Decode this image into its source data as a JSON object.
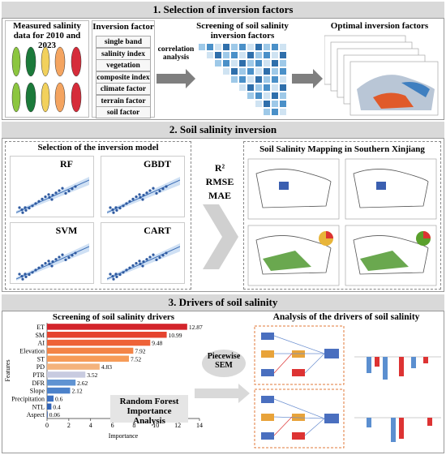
{
  "section1": {
    "title": "1. Selection of inversion factors",
    "measured_data": "Measured salinity data for 2010 and 2023",
    "inversion_factor": {
      "title": "Inversion factor",
      "items": [
        "single band",
        "salinity index",
        "vegetation index",
        "composite index",
        "climate factor",
        "terrain factor",
        "soil factor"
      ]
    },
    "arrow_label": "correlation analysis",
    "screening": "Screening of soil salinity inversion factors",
    "optimal": "Optimal inversion factors"
  },
  "section2": {
    "title": "2. Soil salinity inversion",
    "model_selection": {
      "title": "Selection of the inversion model",
      "models": [
        "RF",
        "GBDT",
        "SVM",
        "CART"
      ]
    },
    "metrics": [
      "R²",
      "RMSE",
      "MAE"
    ],
    "mapping": "Soil Salinity Mapping in Southern Xinjiang"
  },
  "section3": {
    "title": "3. Drivers of soil salinity",
    "drivers_chart": {
      "type": "bar",
      "orientation": "horizontal",
      "title": "Screening of soil salinity drivers",
      "categories": [
        "ET",
        "SM",
        "AI",
        "Elevation",
        "ST",
        "PD",
        "PTR",
        "DFR",
        "Slope",
        "Precipitation",
        "NTL",
        "Aspect"
      ],
      "values": [
        12.87,
        10.99,
        9.48,
        7.92,
        7.52,
        4.83,
        3.52,
        2.62,
        2.12,
        0.6,
        0.4,
        0.06
      ],
      "colors": [
        "#d3242b",
        "#e5432e",
        "#ee6238",
        "#f38447",
        "#f69b58",
        "#f4b37c",
        "#c8cbe0",
        "#5f93d2",
        "#4c82ca",
        "#3e72c2",
        "#3063b6",
        "#2653a4"
      ],
      "xlabel": "Importance",
      "ylabel": "Features",
      "xlim": [
        0,
        14
      ],
      "xticks": [
        0,
        2,
        4,
        6,
        8,
        10,
        12,
        14
      ],
      "annotation": "Random Forest Importance Analysis"
    },
    "sem_label": "Piecewise SEM",
    "analysis": "Analysis of the drivers of soil salinity"
  }
}
